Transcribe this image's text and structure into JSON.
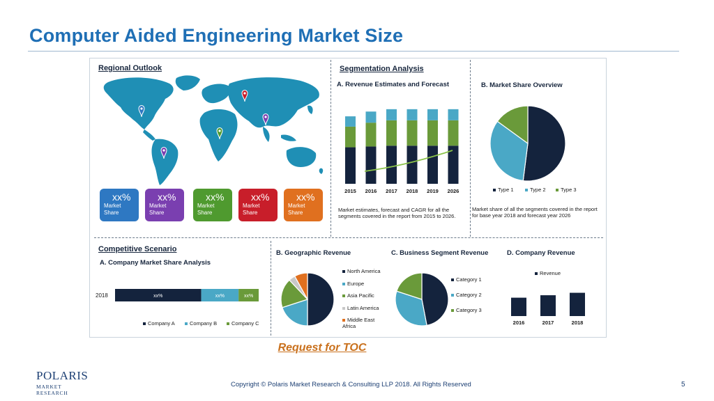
{
  "slide": {
    "title": "Computer Aided Engineering Market Size",
    "toc_link": "Request for TOC",
    "copyright": "Copyright © Polaris Market Research & Consulting LLP 2018. All Rights Reserved",
    "page_number": "5",
    "logo": {
      "main": "POLARIS",
      "sub": "MARKET RESEARCH"
    }
  },
  "regional": {
    "heading": "Regional Outlook",
    "cards": [
      {
        "value": "xx%",
        "line1": "Market",
        "line2": "Share",
        "color": "#2e78c2"
      },
      {
        "value": "xx%",
        "line1": "Market",
        "line2": "Share",
        "color": "#7a3fb0"
      },
      {
        "value": "xx%",
        "line1": "Market",
        "line2": "Share",
        "color": "#4f9a2f"
      },
      {
        "value": "xx%",
        "line1": "Market",
        "line2": "Share",
        "color": "#c81e2a"
      },
      {
        "value": "xx%",
        "line1": "Market",
        "line2": "Share",
        "color": "#e0701f"
      }
    ]
  },
  "segmentation": {
    "heading": "Segmentation Analysis",
    "revenue_title": "A. Revenue Estimates and Forecast",
    "revenue_caption": "Market estimates, forecast and CAGR for all the segments covered in the report from 2015 to 2026.",
    "share_title": "B. Market Share Overview",
    "share_caption": "Market share of all the segments covered in the report for base year 2018 and forecast year 2026",
    "share_legend": [
      "Type 1",
      "Type 2",
      "Type 3"
    ]
  },
  "competitive": {
    "heading": "Competitive Scenario",
    "sub_heading": "A. Company Market Share Analysis",
    "legend": [
      "Company A",
      "Company B",
      "Company C"
    ],
    "geo_title": "B. Geographic Revenue",
    "geo_legend": [
      "North America",
      "Europe",
      "Asia Pacific",
      "Latin America",
      "Middle East Africa"
    ],
    "business_title": "C. Business Segment Revenue",
    "business_legend": [
      "Category 1",
      "Category 2",
      "Category 3"
    ],
    "company_title": "D. Company Revenue",
    "company_legend": "Revenue"
  },
  "colors": {
    "navy": "#14233d",
    "teal": "#4aa8c6",
    "green": "#6a9a3a",
    "orange": "#e0701f",
    "grey": "#c8c8c8",
    "map": "#1f8fb5"
  },
  "chart_data": [
    {
      "type": "bar",
      "title": "A. Revenue Estimates and Forecast",
      "categories": [
        "2015",
        "2016",
        "2017",
        "2018",
        "2019",
        "2026"
      ],
      "series": [
        {
          "values": [
            46,
            47,
            48,
            48,
            48,
            48
          ]
        },
        {
          "values": [
            26,
            30,
            32,
            32,
            32,
            32
          ]
        },
        {
          "values": [
            13,
            14,
            14,
            14,
            14,
            14
          ]
        }
      ],
      "ylim": [
        0,
        100
      ]
    },
    {
      "type": "pie",
      "title": "B. Market Share Overview",
      "categories": [
        "Type 1",
        "Type 2",
        "Type 3"
      ],
      "values": [
        52,
        33,
        15
      ]
    },
    {
      "type": "bar",
      "title": "A. Company Market Share Analysis",
      "categories": [
        "2018"
      ],
      "series": [
        {
          "name": "Company A",
          "values": [
            60
          ],
          "label": "xx%"
        },
        {
          "name": "Company B",
          "values": [
            26
          ],
          "label": "xx%"
        },
        {
          "name": "Company C",
          "values": [
            14
          ],
          "label": "xx%"
        }
      ]
    },
    {
      "type": "pie",
      "title": "B. Geographic Revenue",
      "categories": [
        "North America",
        "Europe",
        "Asia Pacific",
        "Latin America",
        "Middle East Africa"
      ],
      "values": [
        50,
        20,
        18,
        4,
        8
      ]
    },
    {
      "type": "pie",
      "title": "C. Business Segment Revenue",
      "categories": [
        "Category 1",
        "Category 2",
        "Category 3"
      ],
      "values": [
        47,
        33,
        20
      ]
    },
    {
      "type": "bar",
      "title": "D. Company Revenue",
      "categories": [
        "2016",
        "2017",
        "2018"
      ],
      "values": [
        60,
        68,
        76
      ],
      "ylim": [
        0,
        100
      ]
    }
  ]
}
